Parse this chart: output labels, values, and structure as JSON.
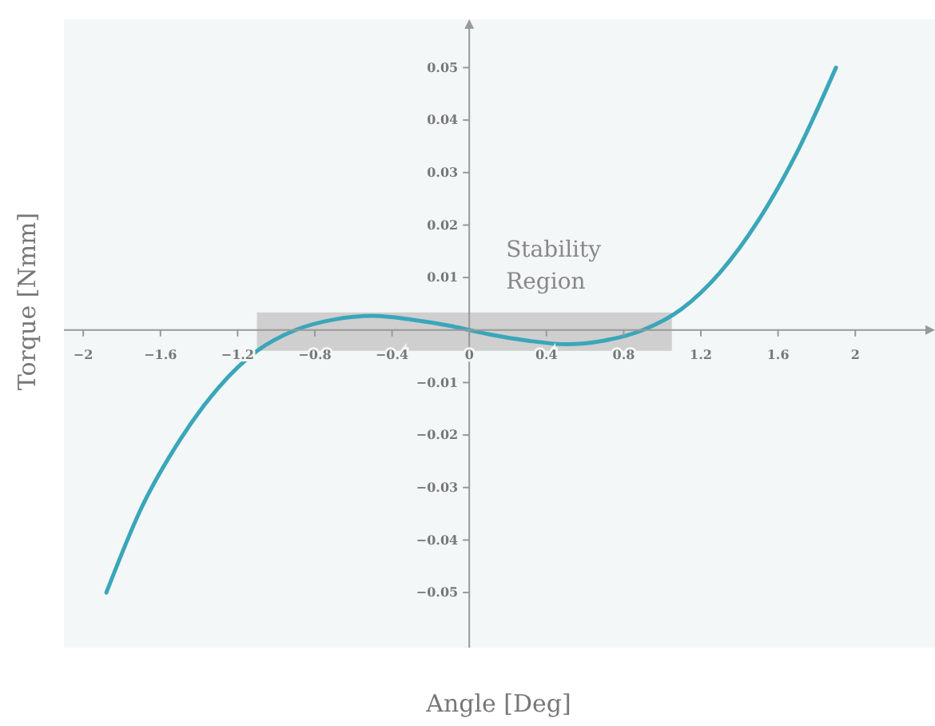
{
  "chart_data": {
    "type": "line",
    "xlabel": "Angle [Deg]",
    "ylabel": "Torque [Nmm]",
    "x": [
      -1.88,
      -1.7,
      -1.5,
      -1.3,
      -1.1,
      -0.9,
      -0.7,
      -0.5,
      -0.3,
      -0.1,
      0,
      0.1,
      0.3,
      0.5,
      0.7,
      0.9,
      1.1,
      1.3,
      1.5,
      1.7,
      1.9
    ],
    "series": [
      {
        "color": "#3aa6b9",
        "values": [
          -0.05,
          -0.034,
          -0.021,
          -0.011,
          -0.004,
          0,
          0.002,
          0.0027,
          0.002,
          0.0008,
          0,
          -0.0008,
          -0.002,
          -0.0027,
          -0.002,
          0,
          0.004,
          0.011,
          0.021,
          0.034,
          0.05
        ]
      }
    ],
    "xlim": [
      -2.1,
      2.38
    ],
    "ylim": [
      -0.0605,
      0.058
    ],
    "xticks": [
      -2,
      -1.6,
      -1.2,
      -0.8,
      -0.4,
      0,
      0.4,
      0.8,
      1.2,
      1.6,
      2
    ],
    "yticks": [
      -0.05,
      -0.04,
      -0.03,
      -0.02,
      -0.01,
      0.01,
      0.02,
      0.03,
      0.04,
      0.05
    ],
    "bands": [
      {
        "axis": "x",
        "from": -1.1,
        "to": 1.05,
        "label": "Stability Region",
        "color": "#c8c8c8"
      }
    ],
    "grid": false,
    "marker": "none",
    "line_style": "solid"
  }
}
